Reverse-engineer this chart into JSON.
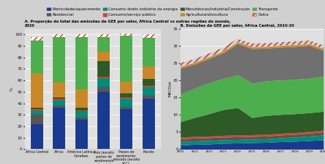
{
  "panel_a_title": "A. Proporção do total das emissões de GEE por setor, África Central vs outras regiões do mundo,\n2020",
  "panel_b_title": "B. Emissões de GEE por setor, África Central, 2010-20",
  "ylabel_a": "%",
  "ylabel_b": "MtCO₂e",
  "bar_categories": [
    "África Central",
    "África",
    "América Latina e\nCaraíbas",
    "Ásia (exceto\npaíses de\nrendimento\nelevado)",
    "Países de\nrendimento\nelevado (exceto\nALC)",
    "Mundo"
  ],
  "bar_data_ordered": {
    "Eletricidade/aquecimento": [
      22,
      36,
      26,
      50,
      35,
      44
    ],
    "Residencial": [
      8,
      2,
      2,
      4,
      2,
      3
    ],
    "Consumo direto": [
      4,
      5,
      5,
      8,
      7,
      7
    ],
    "Consumo/serviço público": [
      1,
      1,
      1,
      1,
      1,
      1
    ],
    "Manufaturas/Ind": [
      1,
      1,
      2,
      14,
      4,
      6
    ],
    "Agricultura/silv": [
      30,
      13,
      16,
      8,
      10,
      11
    ],
    "Transporte": [
      29,
      40,
      46,
      13,
      40,
      25
    ],
    "Outra": [
      3,
      2,
      2,
      2,
      2,
      3
    ]
  },
  "bar_colors": [
    "#1a3a8f",
    "#555555",
    "#008b7a",
    "#d94030",
    "#2d5a27",
    "#c8882a",
    "#4cae4c",
    "#ffffff"
  ],
  "bar_hatches": [
    null,
    null,
    null,
    null,
    null,
    null,
    null,
    "////"
  ],
  "bar_ec": [
    "none",
    "none",
    "none",
    "none",
    "none",
    "none",
    "none",
    "#cc2200"
  ],
  "years": [
    2010,
    2011,
    2012,
    2013,
    2014,
    2015,
    2016,
    2017,
    2018,
    2019,
    2020
  ],
  "area_data_ordered": {
    "Eletricidade/aquecimento": [
      1.2,
      1.4,
      1.5,
      1.7,
      1.8,
      1.9,
      2.0,
      2.2,
      2.3,
      2.5,
      2.7
    ],
    "Residencial": [
      1.5,
      1.5,
      1.5,
      1.6,
      1.7,
      1.8,
      1.9,
      2.0,
      2.1,
      2.2,
      2.3
    ],
    "Consumo direto": [
      0.7,
      0.7,
      0.7,
      0.7,
      0.7,
      0.7,
      0.7,
      0.8,
      0.8,
      0.8,
      0.9
    ],
    "Consumo/serviço público": [
      0.3,
      0.3,
      0.3,
      0.3,
      0.3,
      0.3,
      0.3,
      0.3,
      0.3,
      0.3,
      0.3
    ],
    "Manufaturas/Ind": [
      0.2,
      0.2,
      0.2,
      0.2,
      0.2,
      0.2,
      0.2,
      0.2,
      0.2,
      0.2,
      0.2
    ],
    "Agricultura/silv": [
      5.0,
      6.0,
      7.0,
      8.0,
      8.5,
      5.5,
      6.0,
      6.0,
      6.0,
      6.0,
      6.0
    ],
    "Transporte": [
      7.5,
      8.0,
      8.5,
      8.5,
      8.8,
      9.5,
      9.5,
      9.5,
      9.5,
      9.5,
      9.8
    ],
    "Manufaturas2": [
      7.0,
      6.5,
      6.5,
      7.0,
      8.5,
      9.5,
      9.0,
      8.8,
      8.7,
      8.7,
      6.0
    ],
    "Outra": [
      0.8,
      0.8,
      0.8,
      1.2,
      1.2,
      0.5,
      0.5,
      0.5,
      0.5,
      0.5,
      1.0
    ]
  },
  "area_colors": [
    "#1a3a8f",
    "#555555",
    "#008b7a",
    "#d94030",
    "#2d5a27",
    "#4cae4c",
    "#808080",
    "#808080",
    "#ffffff"
  ],
  "area_ec": [
    "none",
    "none",
    "none",
    "none",
    "none",
    "none",
    "none",
    "none",
    "#cc2200"
  ],
  "area_hatches": [
    null,
    null,
    null,
    null,
    null,
    null,
    null,
    null,
    "////"
  ],
  "bg_color": "#d0d0d0",
  "plot_bg": "#e0e0e0",
  "yticks_a": [
    0,
    10,
    20,
    30,
    40,
    50,
    60,
    70,
    80,
    90,
    100
  ],
  "ylim_a": [
    0,
    105
  ],
  "yticks_b": [
    0,
    5,
    10,
    15,
    20,
    25,
    30,
    35
  ],
  "ylim_b": [
    0,
    35
  ]
}
